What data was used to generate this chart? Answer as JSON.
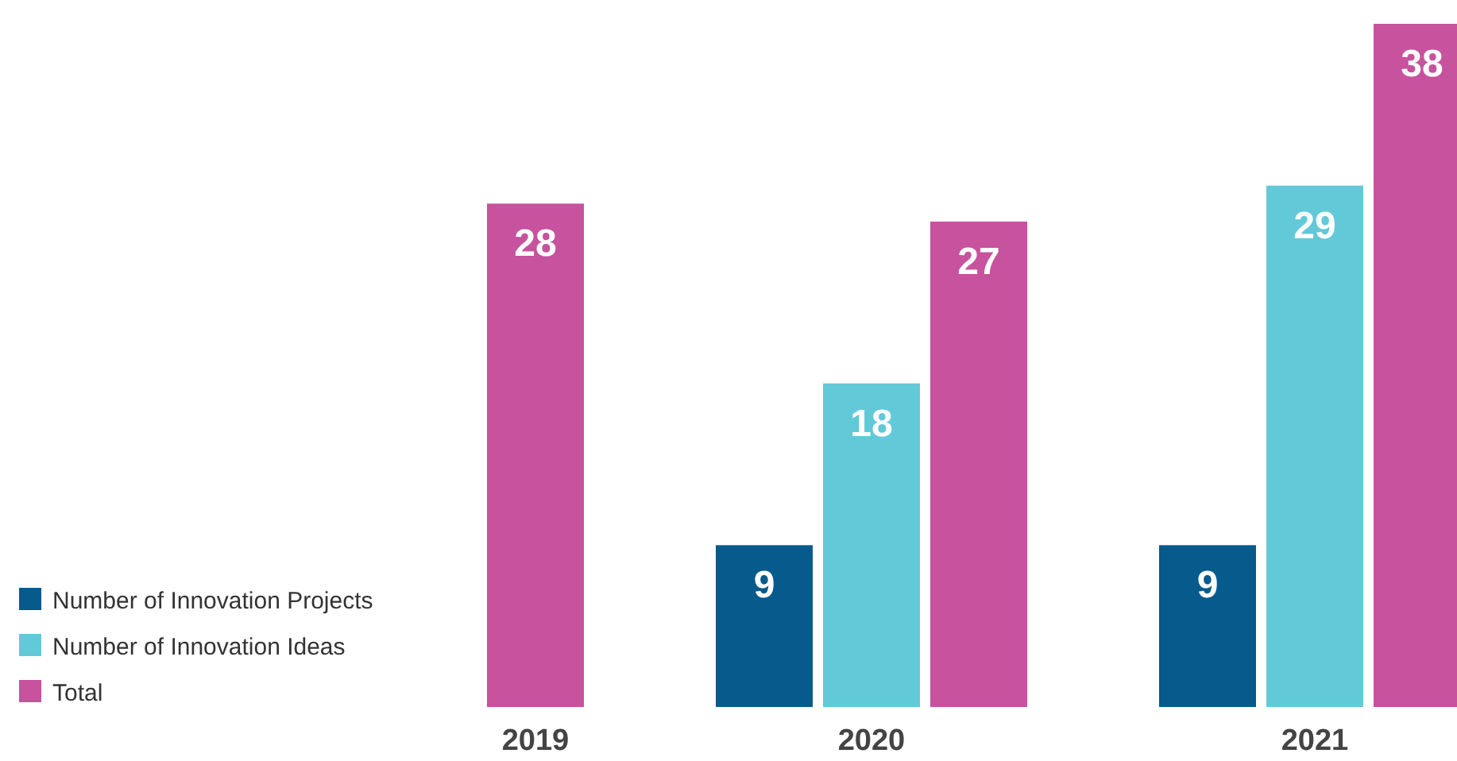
{
  "chart_data": {
    "type": "bar",
    "categories": [
      "2019",
      "2020",
      "2021"
    ],
    "series": [
      {
        "name": "Number of Innovation Projects",
        "color": "#065a8c",
        "values": [
          null,
          9,
          9
        ]
      },
      {
        "name": "Number of Innovation Ideas",
        "color": "#62c9d9",
        "values": [
          null,
          18,
          29
        ]
      },
      {
        "name": "Total",
        "color": "#c7529e",
        "values": [
          28,
          27,
          38
        ]
      }
    ],
    "data_labels": true,
    "legend": "bottom left",
    "grid": false
  }
}
